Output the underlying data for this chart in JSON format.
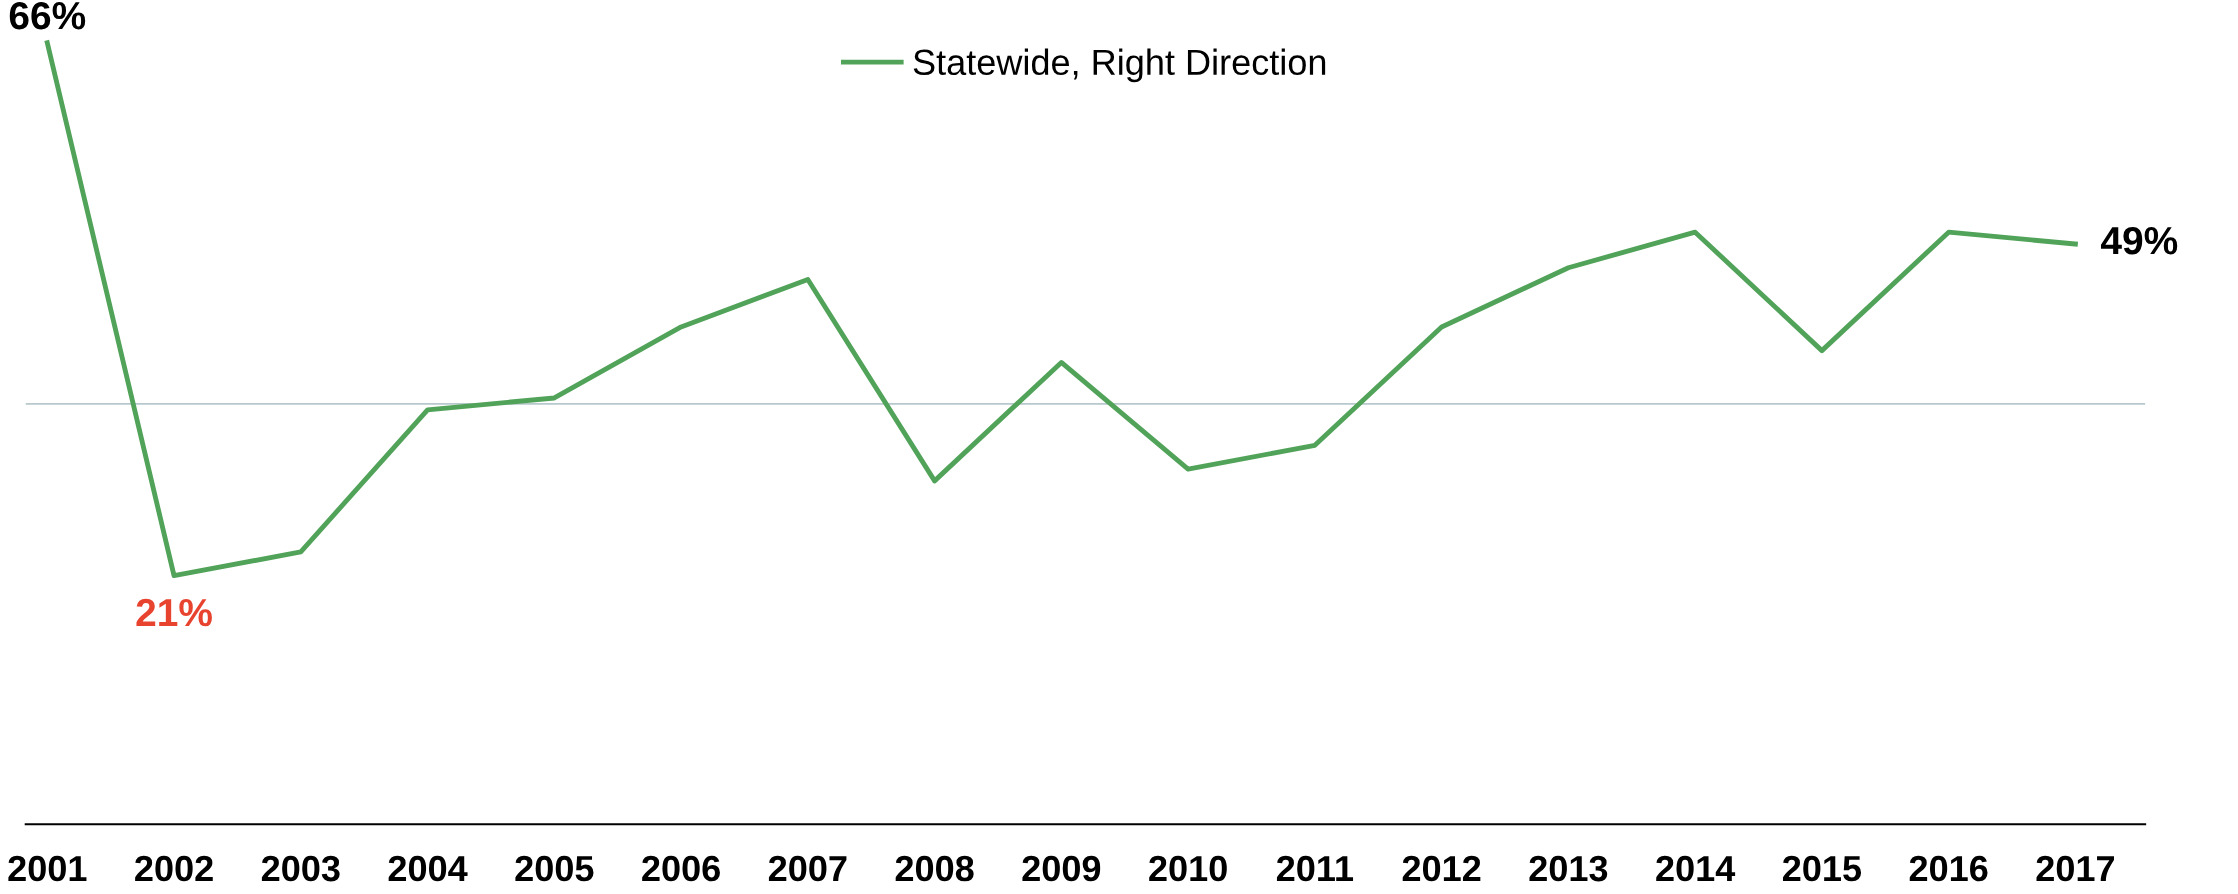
{
  "chart_data": {
    "type": "line",
    "categories": [
      "2001",
      "2002",
      "2003",
      "2004",
      "2005",
      "2006",
      "2007",
      "2008",
      "2009",
      "2010",
      "2011",
      "2012",
      "2013",
      "2014",
      "2015",
      "2016",
      "2017"
    ],
    "series": [
      {
        "name": "Statewide, Right Direction",
        "color": "#52a35a",
        "values": [
          66,
          21,
          23,
          35,
          36,
          42,
          46,
          29,
          39,
          30,
          32,
          42,
          47,
          50,
          40,
          50,
          49
        ],
        "value_labels": [
          "66%",
          "21%",
          null,
          null,
          null,
          null,
          null,
          null,
          null,
          null,
          null,
          null,
          null,
          null,
          null,
          null,
          "49%"
        ]
      }
    ],
    "tick_labels": "x",
    "ref_lines": [
      {
        "axis": "y",
        "value": 35.5,
        "color": "#b7c9cc"
      }
    ],
    "legend": "top",
    "grid": false,
    "marker": "none",
    "line_style": "solid"
  }
}
